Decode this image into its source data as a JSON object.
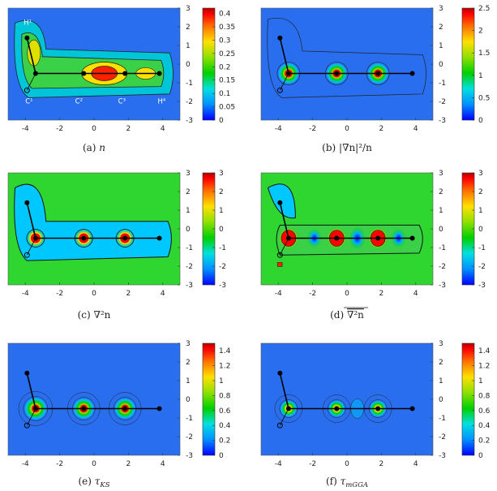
{
  "colors": {
    "bond": "#000000",
    "contour": "#1a1a1a",
    "background_field": "#2a6ef0",
    "colormap": [
      "#0000ff",
      "#00b4ff",
      "#00e0e0",
      "#00d000",
      "#90e000",
      "#ffe000",
      "#ff8000",
      "#ff0000",
      "#b40000"
    ]
  },
  "molecule": {
    "atom_labels": [
      "H1",
      "C1",
      "C2",
      "C3",
      "H4"
    ],
    "atom_labels_display": {
      "h1": "H¹",
      "c1": "C¹",
      "c2": "C²",
      "c3": "C³",
      "h4": "H⁴"
    },
    "atoms_x": [
      -3.4,
      -0.6,
      1.8,
      3.8
    ],
    "atoms_y": [
      -0.5,
      -0.5,
      -0.5,
      -0.5
    ],
    "hydrogen_x": -3.9,
    "hydrogen_y": 1.4,
    "open_atom_x": -3.9,
    "open_atom_y": -1.4
  },
  "panels": [
    {
      "id": "a",
      "caption": "(a) n",
      "cap_prefix": "(a) ",
      "cap_sym": "n",
      "caption_display": "(a) n",
      "colorbar": {
        "min": 0,
        "max": 0.42,
        "ticks": [
          "0.4",
          "0.35",
          "0.3",
          "0.25",
          "0.2",
          "0.15",
          "0.1",
          "0.05",
          "0"
        ],
        "tick_values": [
          0.4,
          0.35,
          0.3,
          0.25,
          0.2,
          0.15,
          0.1,
          0.05,
          0
        ]
      },
      "x_ticks": [
        "-4",
        "-2",
        "0",
        "2",
        "4"
      ],
      "y_ticks": [
        "3",
        "2",
        "1",
        "0",
        "-1",
        "-2",
        "-3"
      ],
      "show_labels": true
    },
    {
      "id": "b",
      "caption": "(b) |∇n|²/n",
      "caption_display": "(b) |∇n|²/n",
      "colorbar": {
        "min": 0,
        "max": 2.5,
        "ticks": [
          "2.5",
          "2",
          "1.5",
          "1",
          "0.5",
          "0"
        ],
        "tick_values": [
          2.5,
          2,
          1.5,
          1,
          0.5,
          0
        ]
      },
      "x_ticks": [
        "-4",
        "-2",
        "0",
        "2",
        "4"
      ],
      "y_ticks": [
        "3",
        "2",
        "1",
        "0",
        "-1",
        "-2",
        "-3"
      ],
      "show_labels": false
    },
    {
      "id": "c",
      "caption": "(c) ∇²n",
      "caption_display": "(c) ∇²n",
      "colorbar": {
        "min": -3,
        "max": 3,
        "ticks": [
          "3",
          "2",
          "1",
          "0",
          "-1",
          "-2",
          "-3"
        ],
        "tick_values": [
          3,
          2,
          1,
          0,
          -1,
          -2,
          -3
        ]
      },
      "x_ticks": [
        "-4",
        "-2",
        "0",
        "2",
        "4"
      ],
      "y_ticks": [
        "3",
        "2",
        "1",
        "0",
        "-1",
        "-2",
        "-3"
      ],
      "show_labels": false
    },
    {
      "id": "d",
      "caption": "(d) ∇²n (averaged)",
      "cap_prefix": "(d) ",
      "cap_sym": "∇²n",
      "caption_display": "(d) ∇²n (overline)",
      "colorbar": {
        "min": -3,
        "max": 3,
        "ticks": [
          "3",
          "2",
          "1",
          "0",
          "-1",
          "-2",
          "-3"
        ],
        "tick_values": [
          3,
          2,
          1,
          0,
          -1,
          -2,
          -3
        ]
      },
      "x_ticks": [
        "-4",
        "-2",
        "0",
        "2",
        "4"
      ],
      "y_ticks": [
        "3",
        "2",
        "1",
        "0",
        "-1",
        "-2",
        "-3"
      ],
      "show_labels": false
    },
    {
      "id": "e",
      "caption": "(e) τKS",
      "cap_prefix": "(e) ",
      "cap_sym": "τ",
      "cap_sub": "KS",
      "caption_display": "(e) τ_KS",
      "colorbar": {
        "min": 0,
        "max": 1.5,
        "ticks": [
          "1.4",
          "1.2",
          "1",
          "0.8",
          "0.6",
          "0.4",
          "0.2",
          "0"
        ],
        "tick_values": [
          1.4,
          1.2,
          1,
          0.8,
          0.6,
          0.4,
          0.2,
          0
        ]
      },
      "x_ticks": [
        "-4",
        "-2",
        "0",
        "2",
        "4"
      ],
      "y_ticks": [
        "3",
        "2",
        "1",
        "0",
        "-1",
        "-2",
        "-3"
      ],
      "show_labels": false
    },
    {
      "id": "f",
      "caption": "(f) τmGGA",
      "cap_prefix": "(f) ",
      "cap_sym": "τ",
      "cap_sub": "mGGA",
      "caption_display": "(f) τ_mGGA",
      "colorbar": {
        "min": 0,
        "max": 1.5,
        "ticks": [
          "1.4",
          "1.2",
          "1",
          "0.8",
          "0.6",
          "0.4",
          "0.2",
          "0"
        ],
        "tick_values": [
          1.4,
          1.2,
          1,
          0.8,
          0.6,
          0.4,
          0.2,
          0
        ]
      },
      "x_ticks": [
        "-4",
        "-2",
        "0",
        "2",
        "4"
      ],
      "y_ticks": [
        "3",
        "2",
        "1",
        "0",
        "-1",
        "-2",
        "-3"
      ],
      "show_labels": false
    }
  ],
  "chart_data": [
    {
      "type": "heatmap",
      "title": "(a) n",
      "x_range": [
        -5,
        5
      ],
      "y_range": [
        -3,
        3
      ],
      "colorbar_range": [
        0,
        0.42
      ]
    },
    {
      "type": "heatmap",
      "title": "(b) |∇n|²/n",
      "x_range": [
        -5,
        5
      ],
      "y_range": [
        -3,
        3
      ],
      "colorbar_range": [
        0,
        2.5
      ]
    },
    {
      "type": "heatmap",
      "title": "(c) ∇²n",
      "x_range": [
        -5,
        5
      ],
      "y_range": [
        -3,
        3
      ],
      "colorbar_range": [
        -3,
        3
      ]
    },
    {
      "type": "heatmap",
      "title": "(d) averaged ∇²n",
      "x_range": [
        -5,
        5
      ],
      "y_range": [
        -3,
        3
      ],
      "colorbar_range": [
        -3,
        3
      ]
    },
    {
      "type": "heatmap",
      "title": "(e) τ_KS",
      "x_range": [
        -5,
        5
      ],
      "y_range": [
        -3,
        3
      ],
      "colorbar_range": [
        0,
        1.5
      ]
    },
    {
      "type": "heatmap",
      "title": "(f) τ_mGGA",
      "x_range": [
        -5,
        5
      ],
      "y_range": [
        -3,
        3
      ],
      "colorbar_range": [
        0,
        1.5
      ]
    }
  ]
}
